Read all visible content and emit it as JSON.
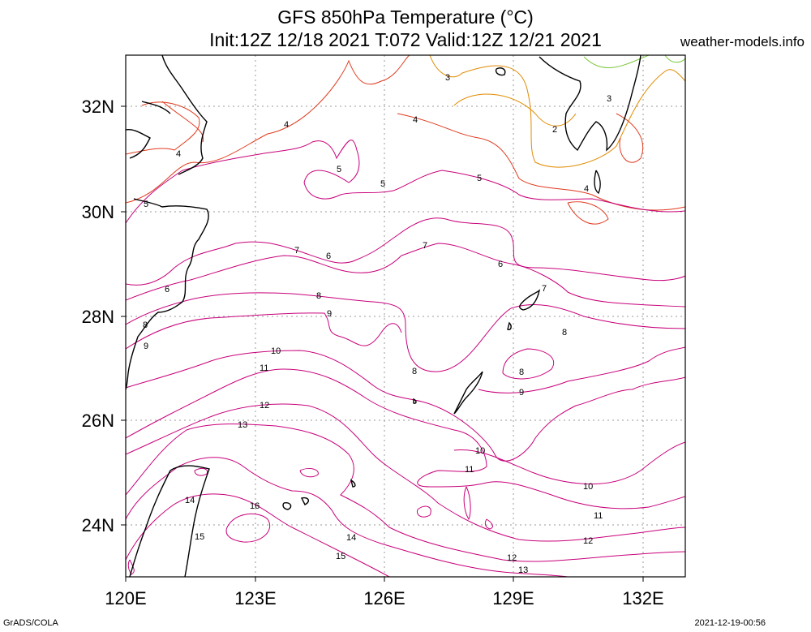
{
  "header": {
    "title_line1": "GFS 850hPa Temperature (°C)",
    "title_line2": "Init:12Z 12/18 2021 T:072 Valid:12Z 12/21 2021",
    "site": "weather-models.info"
  },
  "footer": {
    "credit": "GrADS/COLA",
    "timestamp": "2021-12-19-00:56"
  },
  "map": {
    "lon_range": [
      120,
      133.2
    ],
    "lat_range": [
      23,
      33
    ],
    "lon_ticks": [
      {
        "value": 120,
        "label": "120E"
      },
      {
        "value": 123,
        "label": "123E"
      },
      {
        "value": 126,
        "label": "126E"
      },
      {
        "value": 129,
        "label": "129E"
      },
      {
        "value": 132,
        "label": "132E"
      }
    ],
    "lat_ticks": [
      {
        "value": 24,
        "label": "24N"
      },
      {
        "value": 26,
        "label": "26N"
      },
      {
        "value": 28,
        "label": "28N"
      },
      {
        "value": 30,
        "label": "30N"
      },
      {
        "value": 32,
        "label": "32N"
      }
    ],
    "grid": true,
    "contour_interval_c": 1,
    "contour_labels": [
      "2",
      "3",
      "4",
      "5",
      "6",
      "7",
      "8",
      "9",
      "10",
      "11",
      "12",
      "13",
      "14",
      "15",
      "16"
    ],
    "colors": {
      "c2": "#7ac83c",
      "c3": "#e08a00",
      "c4": "#e03a1e",
      "c5plus": "#c8007a",
      "coast": "#000000",
      "grid": "#9a9a9a"
    }
  }
}
